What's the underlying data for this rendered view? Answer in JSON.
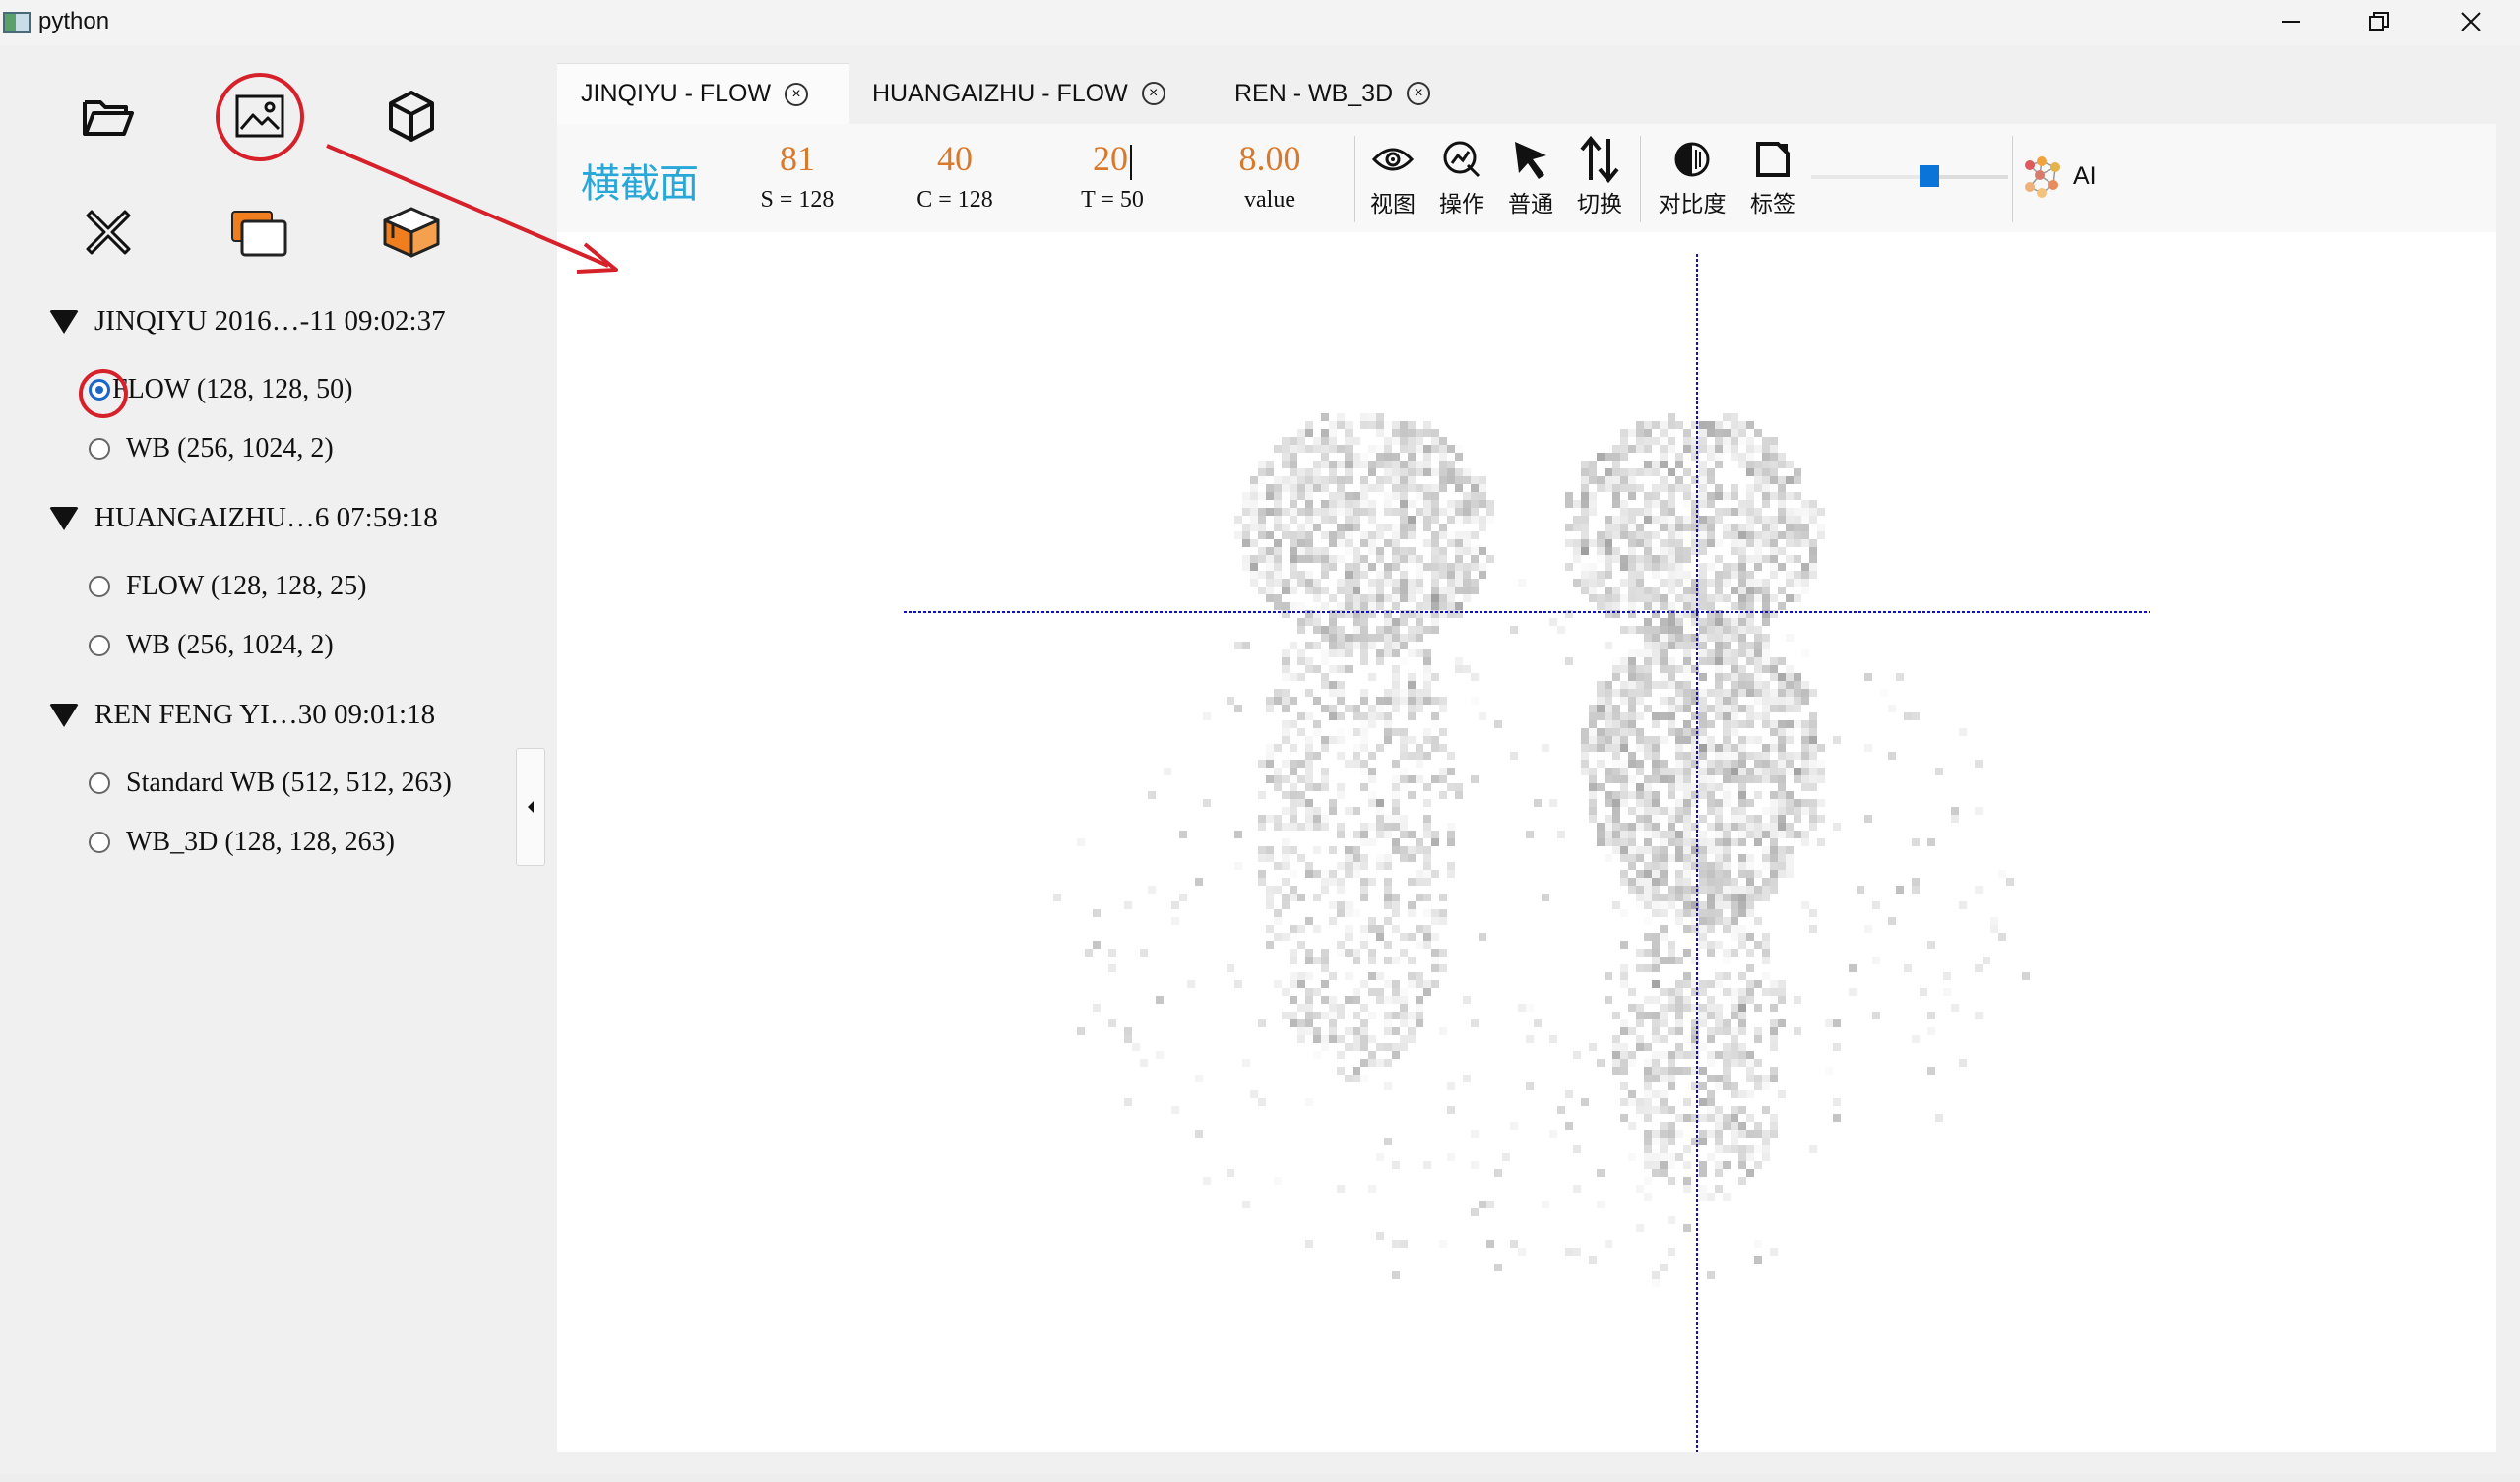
{
  "window": {
    "title": "python",
    "minimize_icon": "minimize-icon",
    "maximize_icon": "restore-icon",
    "close_icon": "close-icon"
  },
  "toolbar_tools": [
    {
      "name": "open-folder",
      "icon": "folder-open-icon"
    },
    {
      "name": "image",
      "icon": "image-icon",
      "highlighted": true
    },
    {
      "name": "3d-cube",
      "icon": "cube-icon"
    },
    {
      "name": "close-all",
      "icon": "x-close-icon"
    },
    {
      "name": "windows",
      "icon": "stacked-windows-icon"
    },
    {
      "name": "3d-box",
      "icon": "orange-box-icon"
    }
  ],
  "tree": [
    {
      "label": "JINQIYU 2016…-11 09:02:37",
      "items": [
        {
          "label": "FLOW (128, 128, 50)",
          "checked": true
        },
        {
          "label": "WB (256, 1024, 2)",
          "checked": false
        }
      ]
    },
    {
      "label": "HUANGAIZHU…6 07:59:18",
      "items": [
        {
          "label": "FLOW (128, 128, 25)",
          "checked": false
        },
        {
          "label": "WB (256, 1024, 2)",
          "checked": false
        }
      ]
    },
    {
      "label": "REN FENG YI…30 09:01:18",
      "items": [
        {
          "label": "Standard WB (512, 512, 263)",
          "checked": false
        },
        {
          "label": "WB_3D (128, 128, 263)",
          "checked": false
        }
      ]
    }
  ],
  "tabs": [
    {
      "label": "JINQIYU - FLOW",
      "active": true
    },
    {
      "label": "HUANGAIZHU - FLOW",
      "active": false
    },
    {
      "label": "REN - WB_3D",
      "active": false
    }
  ],
  "viewer": {
    "view_name": "横截面",
    "coords": [
      {
        "value": "81",
        "label": "S = 128"
      },
      {
        "value": "40",
        "label": "C = 128"
      },
      {
        "value": "20",
        "label": "T = 50"
      },
      {
        "value": "8.00",
        "label": "value"
      }
    ],
    "buttons": [
      {
        "label": "视图",
        "icon": "eye-icon"
      },
      {
        "label": "操作",
        "icon": "operation-icon"
      },
      {
        "label": "普通",
        "icon": "cursor-arrow-icon"
      },
      {
        "label": "切换",
        "icon": "swap-arrows-icon"
      },
      {
        "label": "对比度",
        "icon": "contrast-icon"
      },
      {
        "label": "标签",
        "icon": "label-icon"
      }
    ],
    "slider_value": 0.6,
    "ai_label": "AI",
    "ai_icon": "neural-network-icon",
    "crosshair_color": "#1010c0"
  },
  "colors": {
    "accent_cyan": "#27a8d8",
    "value_orange": "#d9792c",
    "annotation_red": "#d6202a",
    "radio_blue": "#1a66c9"
  }
}
